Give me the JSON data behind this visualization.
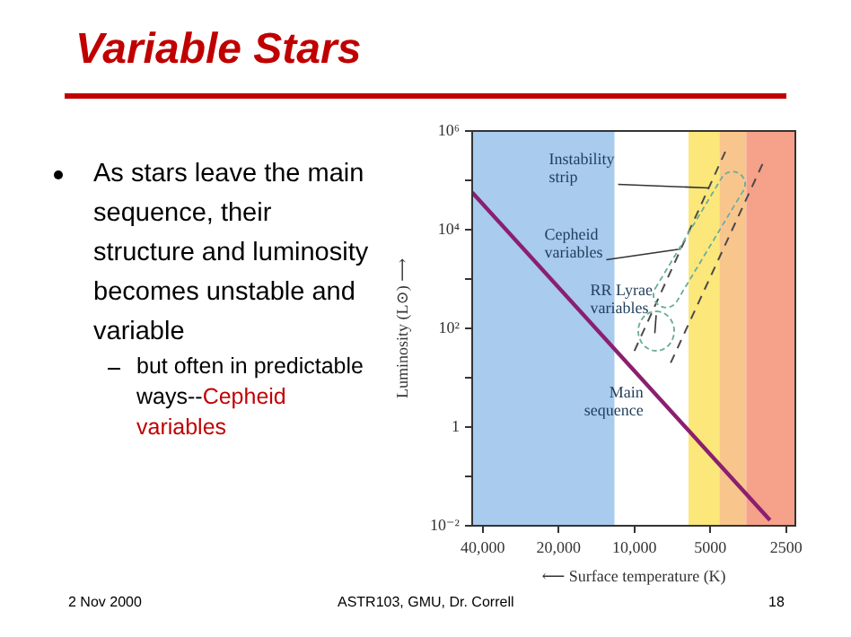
{
  "chart_data": {
    "type": "line",
    "title": "Variable Stars",
    "xlabel": "⟵ Surface temperature (K)",
    "ylabel": "Luminosity (L⊙) ⟶",
    "log": "xy",
    "marker": "none",
    "xlim": [
      44000,
      2300
    ],
    "xticks": [
      {
        "value": 40000,
        "label": "40,000"
      },
      {
        "value": 20000,
        "label": "20,000"
      },
      {
        "value": 10000,
        "label": "10,000"
      },
      5000,
      2500
    ],
    "ylim": [
      0.01,
      1000000
    ],
    "yticks": [
      {
        "value": 0.01,
        "label": "10⁻²"
      },
      {
        "value": 0.1,
        "label": null
      },
      {
        "value": 1,
        "label": "1"
      },
      {
        "value": 10,
        "label": null
      },
      {
        "value": 100,
        "label": "10²"
      },
      {
        "value": 1000,
        "label": null
      },
      {
        "value": 10000,
        "label": "10⁴"
      },
      {
        "value": 100000,
        "label": null
      },
      {
        "value": 1000000,
        "label": "10⁶"
      }
    ],
    "series": [
      {
        "color": "#8b1f6f",
        "x": [
          44000,
          2900
        ],
        "values": [
          57000,
          0.013
        ]
      },
      {
        "line_style": "dashed",
        "color": "#4a4a4a",
        "x": [
          10000,
          4280
        ],
        "values": [
          35,
          470000
        ]
      },
      {
        "line_style": "dashed",
        "color": "#4a4a4a",
        "x": [
          7180,
          3050
        ],
        "values": [
          20,
          260000
        ]
      }
    ],
    "bands": [
      {
        "axis": "x",
        "from": 44000,
        "to": 12000,
        "color": "#a8cbee"
      },
      {
        "axis": "x",
        "from": 6100,
        "to": 4600,
        "color": "#fbe77a"
      },
      {
        "axis": "x",
        "from": 4600,
        "to": 3600,
        "color": "#f8c68c"
      },
      {
        "axis": "x",
        "from": 3600,
        "to": 2300,
        "color": "#f6a189"
      }
    ],
    "annotations": [
      "As stars leave the main sequence, their structure and luminosity becomes unstable and variable",
      "but often in predictable ways--",
      "Cepheid variables",
      "2 Nov 2000",
      "ASTR103, GMU, Dr. Correll",
      "18",
      {
        "text": "Instability strip",
        "x": 5070,
        "y": 70170
      },
      {
        "text": "Cepheid variables",
        "x": 6542,
        "y": 4056
      },
      {
        "text": "RR Lyrae variables",
        "x": 8300,
        "y": 80
      },
      {
        "text": "Main sequence",
        "x": 10000,
        "y": 13.7
      }
    ]
  }
}
